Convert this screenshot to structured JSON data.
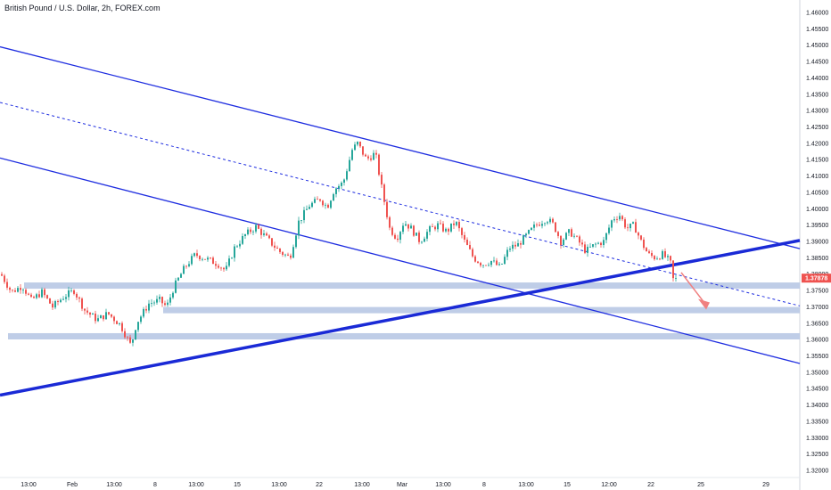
{
  "header": {
    "title": "British Pound / U.S. Dollar, 2h, FOREX.com"
  },
  "colors": {
    "bull": "#26a69a",
    "bear": "#ef5350",
    "channel": "#1f2ee0",
    "trendline": "#1a2ad6",
    "zone": "#b8c8e4",
    "price_tag": "#ef5350",
    "arrow": "#f08080"
  },
  "chart_data": {
    "type": "candlestick",
    "symbol": "British Pound / U.S. Dollar",
    "interval": "2h",
    "source": "FOREX.com",
    "ylim": [
      1.3175,
      1.4625
    ],
    "y_ticks": [
      "1.46000",
      "1.45500",
      "1.45000",
      "1.44500",
      "1.44000",
      "1.43500",
      "1.43000",
      "1.42500",
      "1.42000",
      "1.41500",
      "1.41000",
      "1.40500",
      "1.40000",
      "1.39500",
      "1.39000",
      "1.38500",
      "1.38000",
      "1.37500",
      "1.37000",
      "1.36500",
      "1.36000",
      "1.35500",
      "1.35000",
      "1.34500",
      "1.34000",
      "1.33500",
      "1.33000",
      "1.32500",
      "1.32000"
    ],
    "x_ticks": [
      "13:00",
      "Feb",
      "13:00",
      "8",
      "13:00",
      "15",
      "13:00",
      "22",
      "13:00",
      "Mar",
      "13:00",
      "8",
      "13:00",
      "15",
      "12:00",
      "22",
      "25",
      "29"
    ],
    "last_price": "1.37878",
    "series_path": [
      [
        0,
        1.38
      ],
      [
        12,
        1.3745
      ],
      [
        24,
        1.3765
      ],
      [
        34,
        1.372
      ],
      [
        46,
        1.3745
      ],
      [
        58,
        1.37
      ],
      [
        70,
        1.373
      ],
      [
        82,
        1.375
      ],
      [
        94,
        1.369
      ],
      [
        108,
        1.366
      ],
      [
        120,
        1.368
      ],
      [
        134,
        1.3645
      ],
      [
        146,
        1.358
      ],
      [
        152,
        1.365
      ],
      [
        166,
        1.371
      ],
      [
        178,
        1.372
      ],
      [
        186,
        1.37
      ],
      [
        194,
        1.376
      ],
      [
        206,
        1.382
      ],
      [
        218,
        1.386
      ],
      [
        232,
        1.3845
      ],
      [
        244,
        1.383
      ],
      [
        252,
        1.381
      ],
      [
        262,
        1.388
      ],
      [
        274,
        1.392
      ],
      [
        286,
        1.3945
      ],
      [
        298,
        1.391
      ],
      [
        312,
        1.387
      ],
      [
        324,
        1.385
      ],
      [
        334,
        1.396
      ],
      [
        346,
        1.401
      ],
      [
        358,
        1.403
      ],
      [
        366,
        1.4005
      ],
      [
        374,
        1.406
      ],
      [
        384,
        1.408
      ],
      [
        394,
        1.418
      ],
      [
        400,
        1.42
      ],
      [
        410,
        1.415
      ],
      [
        420,
        1.417
      ],
      [
        428,
        1.405
      ],
      [
        436,
        1.394
      ],
      [
        444,
        1.391
      ],
      [
        452,
        1.396
      ],
      [
        460,
        1.394
      ],
      [
        470,
        1.39
      ],
      [
        480,
        1.3935
      ],
      [
        490,
        1.395
      ],
      [
        500,
        1.393
      ],
      [
        510,
        1.396
      ],
      [
        520,
        1.39
      ],
      [
        530,
        1.385
      ],
      [
        540,
        1.383
      ],
      [
        550,
        1.384
      ],
      [
        560,
        1.382
      ],
      [
        570,
        1.388
      ],
      [
        580,
        1.389
      ],
      [
        590,
        1.392
      ],
      [
        600,
        1.395
      ],
      [
        612,
        1.397
      ],
      [
        620,
        1.395
      ],
      [
        628,
        1.39
      ],
      [
        638,
        1.393
      ],
      [
        648,
        1.39
      ],
      [
        656,
        1.387
      ],
      [
        666,
        1.389
      ],
      [
        676,
        1.39
      ],
      [
        686,
        1.397
      ],
      [
        694,
        1.398
      ],
      [
        702,
        1.394
      ],
      [
        710,
        1.395
      ],
      [
        718,
        1.39
      ],
      [
        726,
        1.386
      ],
      [
        734,
        1.385
      ],
      [
        742,
        1.386
      ],
      [
        750,
        1.384
      ],
      [
        757,
        1.3788
      ]
    ],
    "annotations": {
      "upper_channel_line": [
        [
          0,
          1.4495
        ],
        [
          897,
          1.3878
        ]
      ],
      "middle_channel_dashed": [
        [
          0,
          1.4325
        ],
        [
          897,
          1.3703
        ]
      ],
      "lower_channel_line": [
        [
          0,
          1.4155
        ],
        [
          897,
          1.3527
        ]
      ],
      "rising_trendline": [
        [
          0,
          1.343
        ],
        [
          897,
          1.3903
        ]
      ],
      "support_zones": [
        {
          "price": 1.3765,
          "x_start": 27
        },
        {
          "price": 1.369,
          "x_start": 183
        },
        {
          "price": 1.361,
          "x_start": 9
        }
      ],
      "projection_arrow": {
        "from": [
          764,
          1.3805
        ],
        "to": [
          793,
          1.3697
        ]
      }
    }
  }
}
